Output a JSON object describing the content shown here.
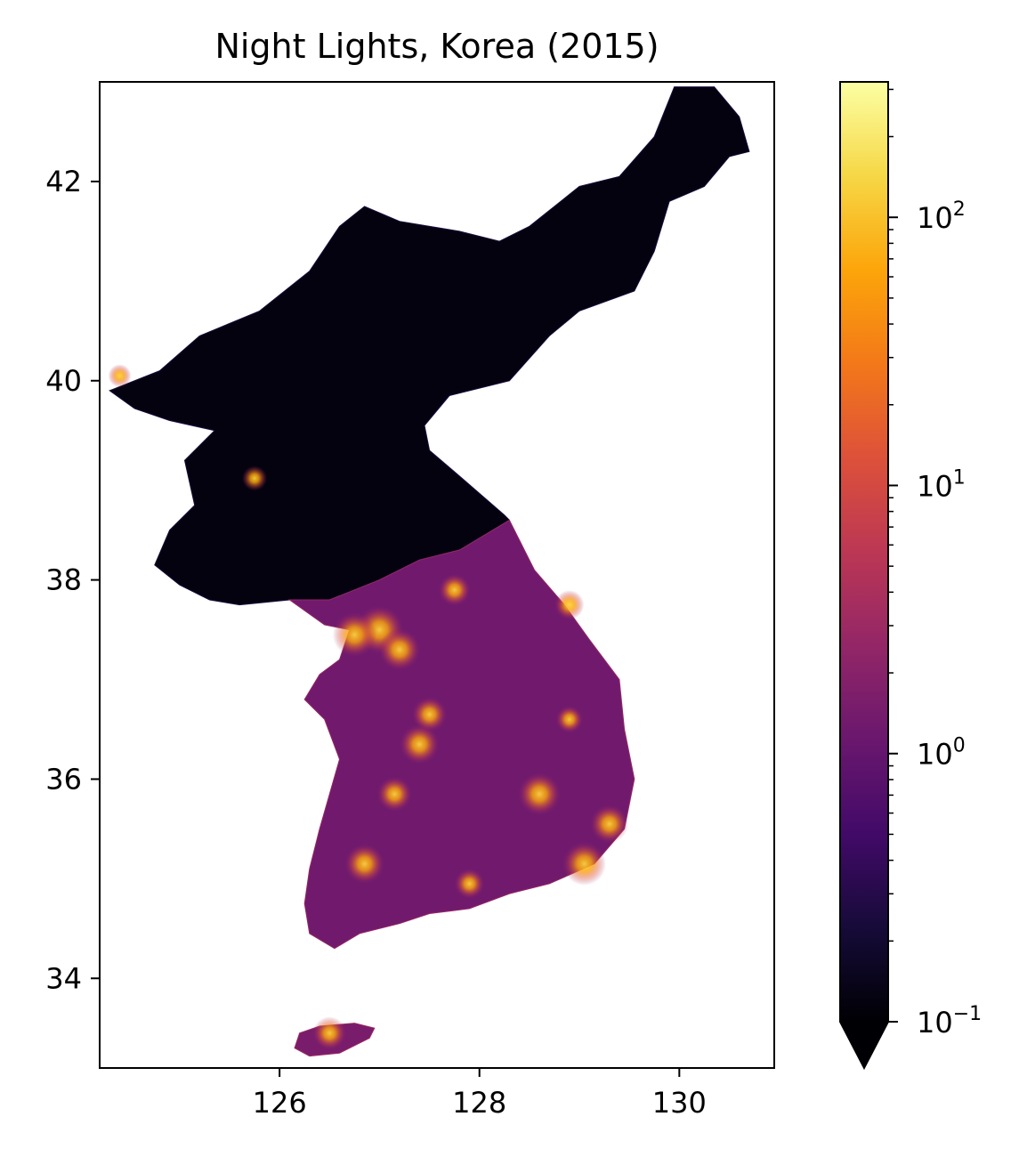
{
  "chart_data": {
    "type": "heatmap",
    "title": "Night Lights, Korea (2015)",
    "xlabel": "",
    "ylabel": "",
    "xlim": [
      124.2,
      130.95
    ],
    "ylim": [
      33.1,
      43.0
    ],
    "xticks": [
      126,
      128,
      130
    ],
    "yticks": [
      34,
      36,
      38,
      40,
      42
    ],
    "grid": false,
    "colormap": "inferno",
    "color_scale": "log",
    "colorbar": {
      "range": [
        0.1,
        320
      ],
      "extend": "min",
      "ticks": [
        {
          "value": 0.1,
          "base": "10",
          "exp": "−1"
        },
        {
          "value": 1,
          "base": "10",
          "exp": "0"
        },
        {
          "value": 10,
          "base": "10",
          "exp": "1"
        },
        {
          "value": 100,
          "base": "10",
          "exp": "2"
        }
      ]
    },
    "regions": {
      "north_korea": {
        "level": 0.12,
        "outline": [
          [
            124.3,
            39.9
          ],
          [
            124.8,
            40.1
          ],
          [
            125.2,
            40.45
          ],
          [
            125.8,
            40.7
          ],
          [
            126.3,
            41.1
          ],
          [
            126.6,
            41.55
          ],
          [
            126.85,
            41.75
          ],
          [
            127.2,
            41.6
          ],
          [
            127.8,
            41.5
          ],
          [
            128.2,
            41.4
          ],
          [
            128.5,
            41.55
          ],
          [
            129.0,
            41.95
          ],
          [
            129.4,
            42.05
          ],
          [
            129.75,
            42.45
          ],
          [
            129.95,
            42.95
          ],
          [
            130.35,
            42.95
          ],
          [
            130.6,
            42.65
          ],
          [
            130.7,
            42.3
          ],
          [
            130.5,
            42.25
          ],
          [
            130.25,
            41.95
          ],
          [
            129.9,
            41.8
          ],
          [
            129.75,
            41.3
          ],
          [
            129.55,
            40.9
          ],
          [
            129.0,
            40.7
          ],
          [
            128.7,
            40.45
          ],
          [
            128.3,
            40.0
          ],
          [
            127.7,
            39.85
          ],
          [
            127.45,
            39.55
          ],
          [
            127.5,
            39.3
          ],
          [
            127.85,
            39.0
          ],
          [
            128.25,
            38.65
          ],
          [
            128.3,
            38.6
          ],
          [
            127.8,
            38.3
          ],
          [
            127.4,
            38.2
          ],
          [
            127.0,
            38.0
          ],
          [
            126.5,
            37.8
          ],
          [
            126.1,
            37.8
          ],
          [
            125.6,
            37.75
          ],
          [
            125.3,
            37.8
          ],
          [
            125.0,
            37.95
          ],
          [
            124.75,
            38.15
          ],
          [
            124.9,
            38.5
          ],
          [
            125.15,
            38.75
          ],
          [
            125.05,
            39.2
          ],
          [
            125.35,
            39.5
          ],
          [
            124.9,
            39.6
          ],
          [
            124.55,
            39.72
          ],
          [
            124.3,
            39.9
          ]
        ]
      },
      "south_korea": {
        "level": 1.3,
        "outline": [
          [
            126.1,
            37.8
          ],
          [
            126.5,
            37.8
          ],
          [
            127.0,
            38.0
          ],
          [
            127.4,
            38.2
          ],
          [
            127.8,
            38.3
          ],
          [
            128.3,
            38.6
          ],
          [
            128.55,
            38.1
          ],
          [
            128.85,
            37.75
          ],
          [
            129.1,
            37.4
          ],
          [
            129.4,
            37.0
          ],
          [
            129.45,
            36.5
          ],
          [
            129.55,
            36.0
          ],
          [
            129.45,
            35.5
          ],
          [
            129.15,
            35.15
          ],
          [
            128.7,
            34.95
          ],
          [
            128.3,
            34.85
          ],
          [
            127.9,
            34.7
          ],
          [
            127.5,
            34.65
          ],
          [
            127.2,
            34.55
          ],
          [
            126.8,
            34.45
          ],
          [
            126.55,
            34.3
          ],
          [
            126.3,
            34.45
          ],
          [
            126.25,
            34.75
          ],
          [
            126.3,
            35.1
          ],
          [
            126.4,
            35.5
          ],
          [
            126.5,
            35.85
          ],
          [
            126.6,
            36.2
          ],
          [
            126.45,
            36.6
          ],
          [
            126.25,
            36.8
          ],
          [
            126.4,
            37.05
          ],
          [
            126.6,
            37.2
          ],
          [
            126.7,
            37.5
          ],
          [
            126.45,
            37.55
          ],
          [
            126.1,
            37.8
          ]
        ]
      },
      "jeju": {
        "level": 1.5,
        "outline": [
          [
            126.15,
            33.3
          ],
          [
            126.3,
            33.22
          ],
          [
            126.6,
            33.25
          ],
          [
            126.9,
            33.4
          ],
          [
            126.95,
            33.5
          ],
          [
            126.75,
            33.55
          ],
          [
            126.4,
            33.52
          ],
          [
            126.2,
            33.45
          ],
          [
            126.15,
            33.3
          ]
        ]
      }
    },
    "hotspots": [
      {
        "lon": 127.0,
        "lat": 37.5,
        "value": 200
      },
      {
        "lon": 126.75,
        "lat": 37.45,
        "value": 120
      },
      {
        "lon": 127.2,
        "lat": 37.3,
        "value": 80
      },
      {
        "lon": 128.6,
        "lat": 35.85,
        "value": 90
      },
      {
        "lon": 129.05,
        "lat": 35.15,
        "value": 110
      },
      {
        "lon": 127.4,
        "lat": 36.35,
        "value": 60
      },
      {
        "lon": 126.85,
        "lat": 35.15,
        "value": 60
      },
      {
        "lon": 129.3,
        "lat": 35.55,
        "value": 50
      },
      {
        "lon": 127.5,
        "lat": 36.65,
        "value": 30
      },
      {
        "lon": 127.15,
        "lat": 35.85,
        "value": 30
      },
      {
        "lon": 127.75,
        "lat": 37.9,
        "value": 20
      },
      {
        "lon": 128.9,
        "lat": 37.75,
        "value": 15
      },
      {
        "lon": 125.75,
        "lat": 39.02,
        "value": 8
      },
      {
        "lon": 124.4,
        "lat": 40.05,
        "value": 6
      },
      {
        "lon": 126.5,
        "lat": 33.45,
        "value": 25
      },
      {
        "lon": 128.9,
        "lat": 36.6,
        "value": 10
      },
      {
        "lon": 127.9,
        "lat": 34.95,
        "value": 15
      }
    ]
  }
}
